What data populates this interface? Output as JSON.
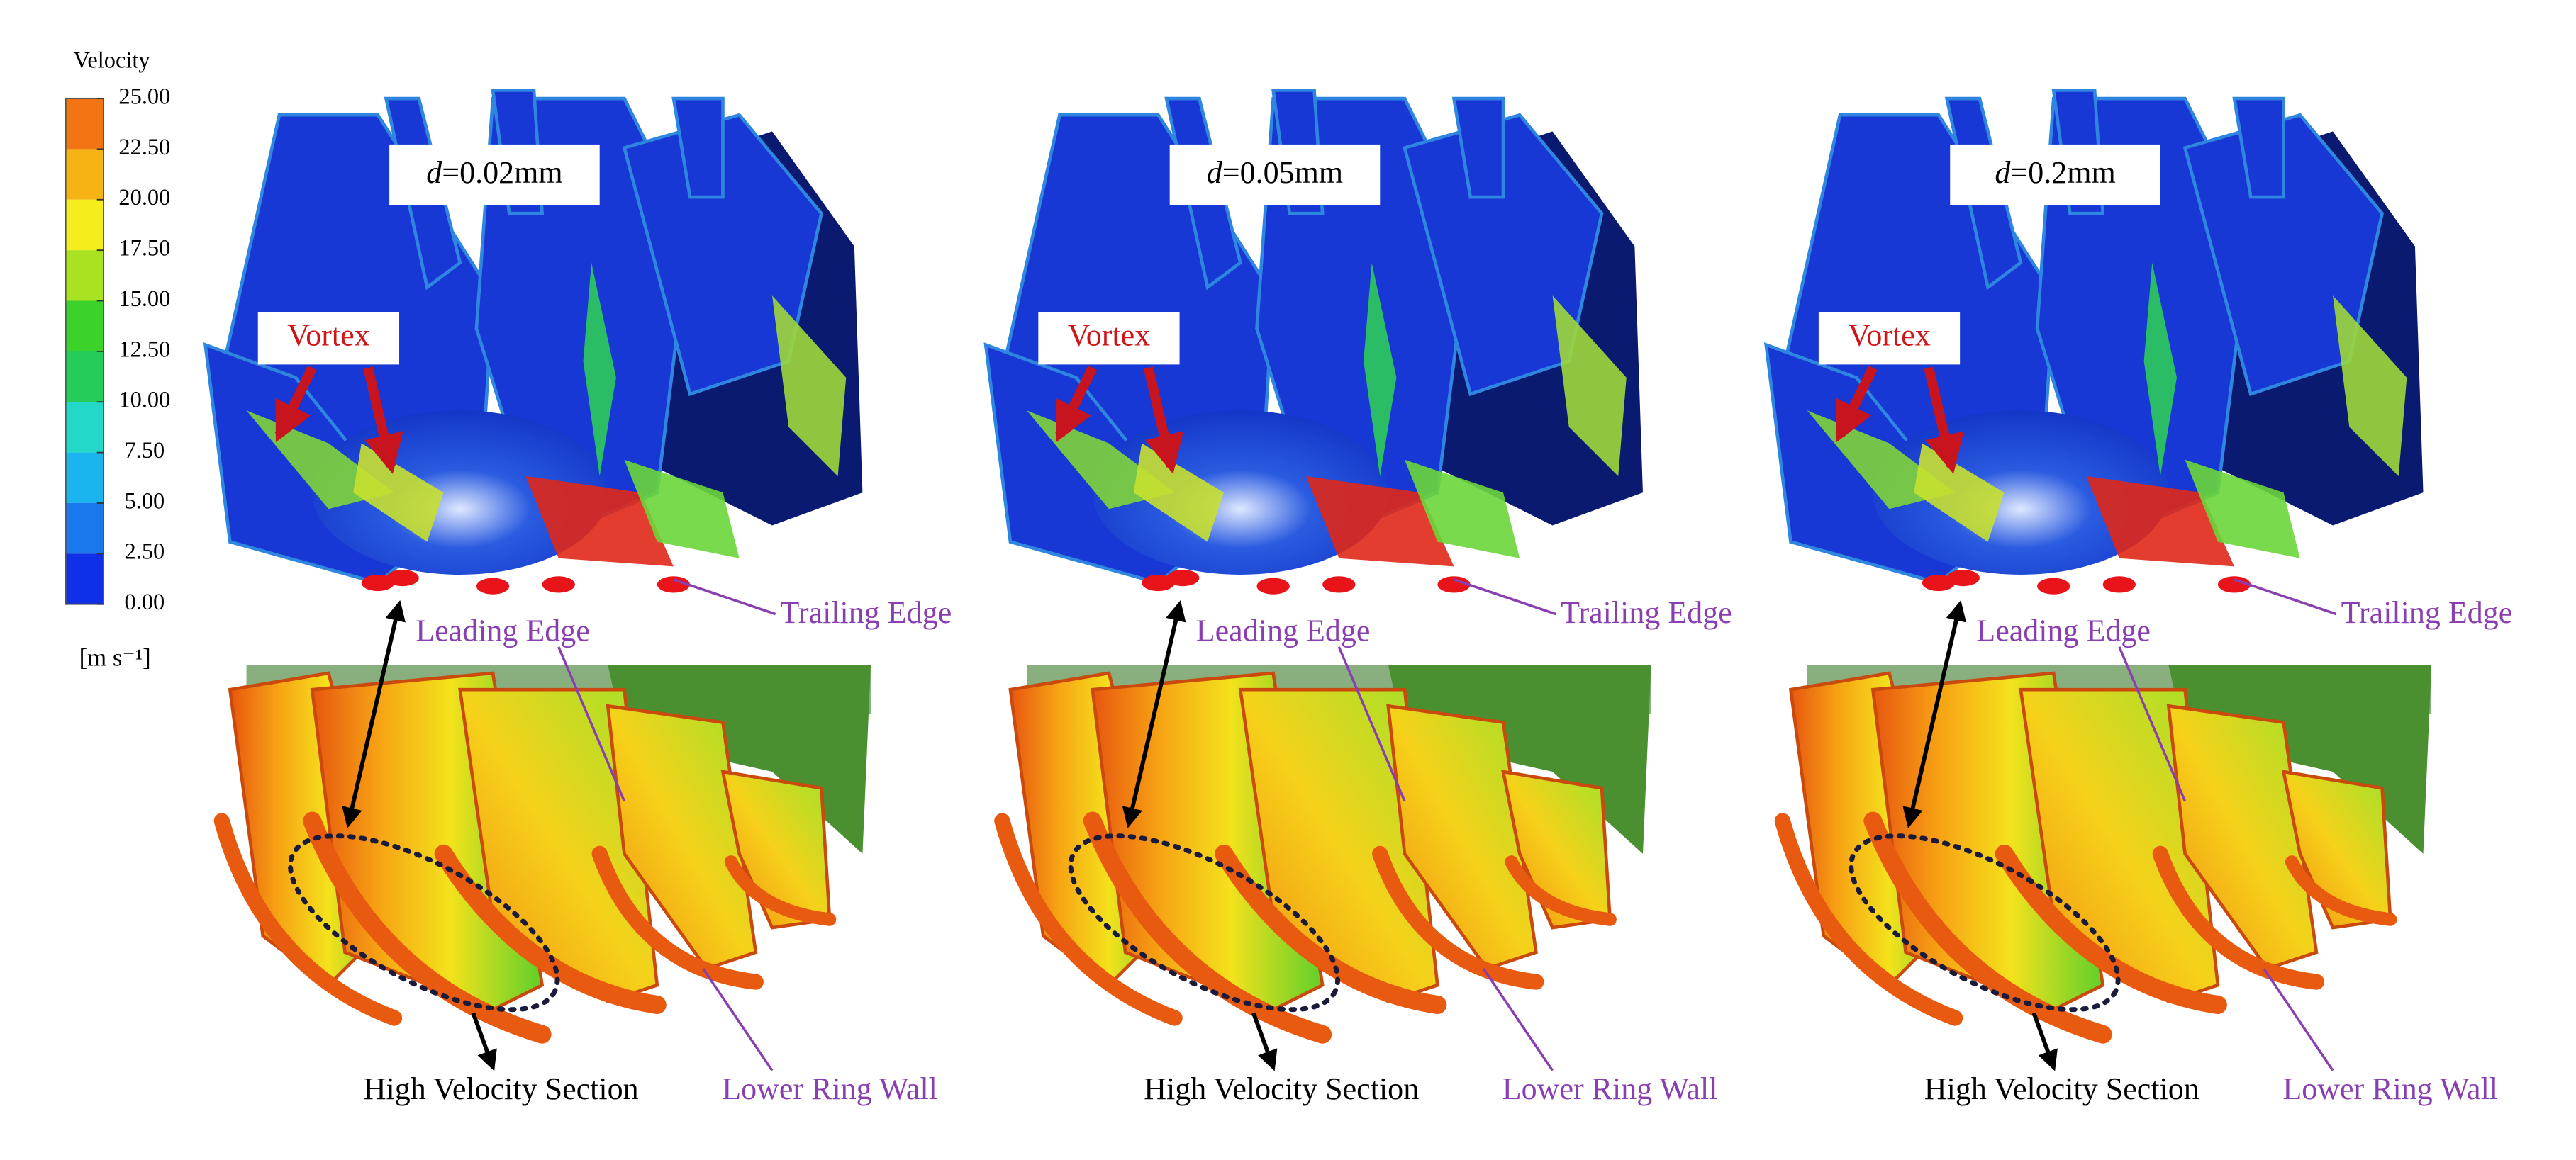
{
  "colorbar": {
    "title": "Velocity",
    "unit": "[m s⁻¹]",
    "lim": [
      0,
      25
    ],
    "ticks": [
      {
        "value": 25,
        "label": "25.00"
      },
      {
        "value": 22.5,
        "label": "22.50"
      },
      {
        "value": 20,
        "label": "20.00"
      },
      {
        "value": 17.5,
        "label": "17.50"
      },
      {
        "value": 15,
        "label": "15.00"
      },
      {
        "value": 12.5,
        "label": "12.50"
      },
      {
        "value": 10,
        "label": "10.00"
      },
      {
        "value": 7.5,
        "label": "7.50"
      },
      {
        "value": 5,
        "label": "5.00"
      },
      {
        "value": 2.5,
        "label": "2.50"
      },
      {
        "value": 0,
        "label": "0.00"
      }
    ]
  },
  "panels": [
    {
      "label_var": "d",
      "label_value": "=0.02mm",
      "vortex": "Vortex",
      "trailing_edge": "Trailing Edge",
      "leading_edge": "Leading Edge",
      "high_velocity_section": "High Velocity Section",
      "lower_ring_wall": "Lower Ring Wall"
    },
    {
      "label_var": "d",
      "label_value": "=0.05mm",
      "vortex": "Vortex",
      "trailing_edge": "Trailing Edge",
      "leading_edge": "Leading Edge",
      "high_velocity_section": "High Velocity Section",
      "lower_ring_wall": "Lower Ring Wall"
    },
    {
      "label_var": "d",
      "label_value": "=0.2mm",
      "vortex": "Vortex",
      "trailing_edge": "Trailing Edge",
      "leading_edge": "Leading Edge",
      "high_velocity_section": "High Velocity Section",
      "lower_ring_wall": "Lower Ring Wall"
    }
  ]
}
